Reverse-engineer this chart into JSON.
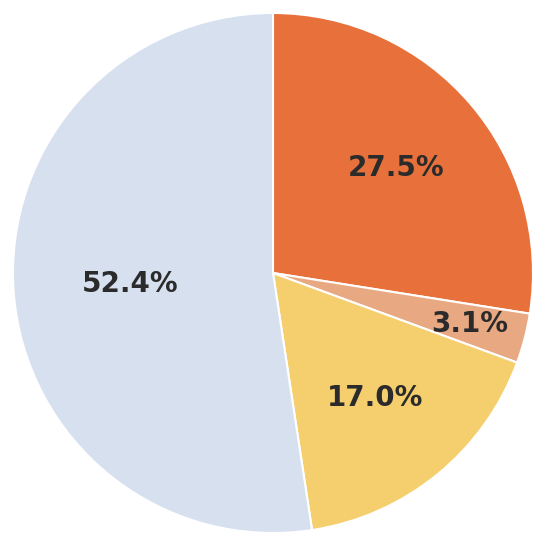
{
  "values": [
    27.5,
    3.1,
    17.0,
    52.4
  ],
  "labels": [
    "27.5%",
    "3.1%",
    "17.0%",
    "52.4%"
  ],
  "colors": [
    "#E8703A",
    "#E8A882",
    "#F5CE6E",
    "#D6E0EF"
  ],
  "startangle": 90,
  "background_color": "#ffffff",
  "text_color": "#2b2b2b",
  "fontsize": 20,
  "label_radii": [
    0.62,
    0.78,
    0.62,
    0.55
  ]
}
